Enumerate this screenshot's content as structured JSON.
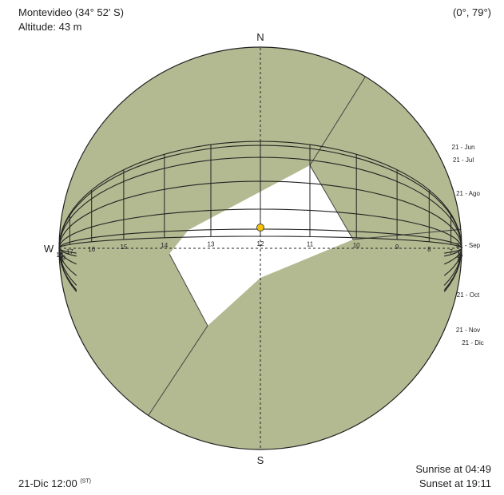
{
  "header": {
    "location": "Montevideo (34° 52' S)",
    "altitude": "Altitude: 43 m",
    "orientation": "(0°, 79°)"
  },
  "footer": {
    "date": "21-Dic 12:00",
    "time_standard": "(ST)",
    "sunrise": "Sunrise at 04:49",
    "sunset": "Sunset at 19:11"
  },
  "compass": {
    "north": "N",
    "south": "S",
    "west": "W"
  },
  "month_labels": [
    "21 - Jun",
    "21 - Jul",
    "21 - Ago",
    "21 - Sep",
    "21 - Oct",
    "21 - Nov",
    "21 - Dic"
  ],
  "hour_labels": [
    "5",
    "6",
    "7",
    "8",
    "9",
    "10",
    "11",
    "12",
    "13",
    "14",
    "15",
    "16",
    "17",
    "18",
    "19"
  ],
  "sun": {
    "hour": 12,
    "date": "21-Dic"
  },
  "colors": {
    "obstruction": "#b3ba91",
    "sky": "#ffffff",
    "line": "#222222",
    "sun": "#f2c200"
  }
}
